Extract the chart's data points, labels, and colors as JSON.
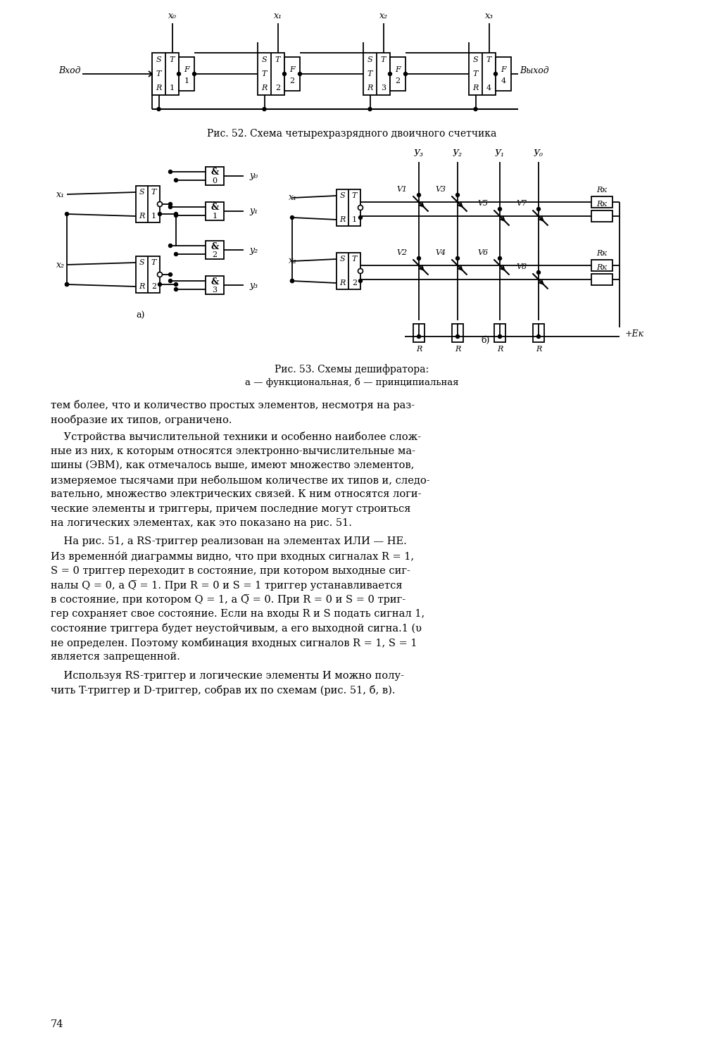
{
  "page_bg": "#ffffff",
  "fig52_caption": "Рис. 52. Схема четырехразрядного двоичного счетчика",
  "fig53_caption": "Рис. 53. Схемы дешифратора:",
  "fig53_subcaption": "а — функциональная, б — принципиальная",
  "page_number": "74",
  "para0": "тем более, что и количество простых элементов, несмотря на раз-\nнообразие их типов, ограничено.",
  "para1_lines": [
    "    Устройства вычислительной техники и особенно наиболее слож-",
    "ные из них, к которым относятся электронно-вычислительные ма-",
    "шины (ЭВМ), как отмечалось выше, имеют множество элементов,",
    "измеряемое тысячами при небольшом количестве их типов и, следо-",
    "вательно, множество электрических связей. К ним относятся логи-",
    "ческие элементы и триггеры, причем последние могут строиться",
    "на логических элементах, как это показано на рис. 51."
  ],
  "para2_lines": [
    "    На рис. 51, а RS-триггер реализован на элементах ИЛИ — НЕ.",
    "Из временно́й диаграммы видно, что при входных сигналах R = 1,",
    "S = 0 триггер переходит в состояние, при котором выходные сиг-",
    "налы Q = 0, а Q̅ = 1. При R = 0 и S = 1 триггер устанавливается",
    "в состояние, при котором Q = 1, а Q̅ = 0. При R = 0 и S = 0 триг-",
    "гер сохраняет свое состояние. Если на входы R и S подать сигнал 1,",
    "состояние триггера будет неустойчивым, а его выходной сигна.1 (υ",
    "не определен. Поэтому комбинация входных сигналов R = 1, S = 1",
    "является запрещенной."
  ],
  "para3_lines": [
    "    Используя RS-триггер и логические элементы И можно полу-",
    "чить T-триггер и D-триггер, собрав их по схемам (рис. 51, б, в)."
  ]
}
